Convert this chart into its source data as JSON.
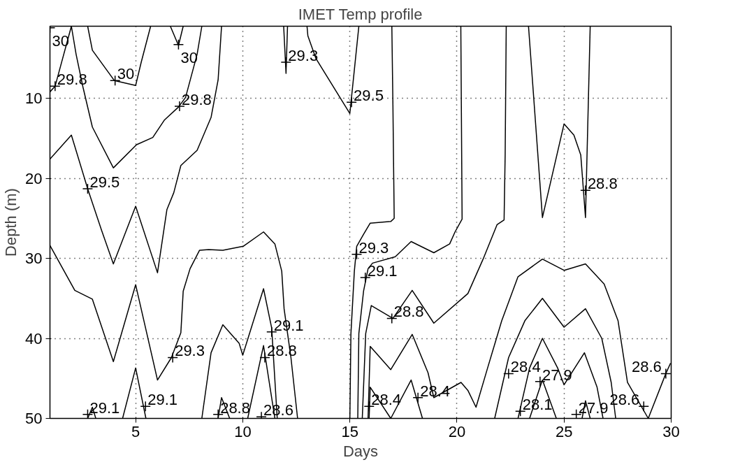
{
  "chart_data": {
    "type": "line",
    "title": "IMET Temp profile",
    "xlabel": "Days",
    "ylabel": "Depth (m)",
    "xlim": [
      1,
      30
    ],
    "ylim": [
      50,
      1
    ],
    "xticks": [
      5,
      10,
      15,
      20,
      25,
      30
    ],
    "yticks": [
      10,
      20,
      30,
      40,
      50
    ],
    "grid": true,
    "line_style": "solid",
    "series": [
      {
        "color": "#000000",
        "x": [
          1,
          1.24,
          2.0
        ],
        "values": [
          9.2,
          8.5,
          1
        ]
      },
      {
        "color": "#000000",
        "x": [
          2.0,
          2.22,
          2.54,
          2.98,
          3.96,
          5.04,
          5.8,
          6.35,
          7.0,
          7.33,
          7.87,
          8.09
        ],
        "values": [
          1,
          4.5,
          8.6,
          13.6,
          18.7,
          15.8,
          14.9,
          12.7,
          11.1,
          9.9,
          4.5,
          1
        ]
      },
      {
        "color": "#000000",
        "x": [
          2.76,
          2.98,
          4.01,
          5.0,
          5.26,
          5.7
        ],
        "values": [
          1,
          4.0,
          7.8,
          8.4,
          5.5,
          1
        ]
      },
      {
        "color": "#000000",
        "x": [
          6.62,
          7.0,
          7.22
        ],
        "values": [
          1,
          3.4,
          1
        ]
      },
      {
        "color": "#000000",
        "x": [
          1,
          2.0,
          2.76,
          3.41,
          3.96,
          5.0,
          6.02,
          6.46,
          6.78,
          7.11,
          7.87,
          8.52,
          8.85,
          9.01
        ],
        "values": [
          17.6,
          14.6,
          21.3,
          26.5,
          30.7,
          23.5,
          31.8,
          23.9,
          21.8,
          18.4,
          16.5,
          12.4,
          7.7,
          1
        ]
      },
      {
        "color": "#000000",
        "x": [
          1,
          2.16,
          2.98,
          3.96,
          5.0,
          6.02,
          6.67,
          7.11,
          7.22,
          7.54,
          7.98,
          8.41,
          9.07,
          10.02,
          10.97,
          11.5,
          11.82,
          11.93,
          12.25,
          12.56
        ],
        "values": [
          28.4,
          34.0,
          35.1,
          42.9,
          33.3,
          45.2,
          42.4,
          39.3,
          34.1,
          31.3,
          29.0,
          28.9,
          29.0,
          28.5,
          26.7,
          28.2,
          31.6,
          36.3,
          42.4,
          50
        ]
      },
      {
        "color": "#000000",
        "x": [
          2.76,
          2.98,
          3.14
        ],
        "values": [
          50,
          48.6,
          50
        ]
      },
      {
        "color": "#000000",
        "x": [
          4.39,
          5.0,
          5.48
        ],
        "values": [
          50,
          43.7,
          50
        ]
      },
      {
        "color": "#000000",
        "x": [
          8.09,
          8.52,
          9.07,
          9.83,
          10.0,
          10.97,
          11.35,
          11.61
        ],
        "values": [
          50,
          41.8,
          38.3,
          40.6,
          42.1,
          33.8,
          38.7,
          50
        ]
      },
      {
        "color": "#000000",
        "x": [
          8.85,
          9.01,
          9.39
        ],
        "values": [
          50,
          47.4,
          50
        ]
      },
      {
        "color": "#000000",
        "x": [
          10.23,
          10.97,
          11.5
        ],
        "values": [
          50,
          40.9,
          50
        ]
      },
      {
        "color": "#000000",
        "x": [
          11.91,
          12.02,
          12.09
        ],
        "values": [
          1,
          6.9,
          1
        ]
      },
      {
        "color": "#000000",
        "x": [
          13.0,
          13.04,
          13.41,
          15.0,
          15.42
        ],
        "values": [
          1,
          2.2,
          5.0,
          11.9,
          1
        ]
      },
      {
        "color": "#000000",
        "x": [
          16.96,
          17.01,
          17.07,
          16.91,
          15.95,
          15.64,
          15.32,
          15.21,
          15.05,
          15.0
        ],
        "values": [
          1,
          10.8,
          25.0,
          25.4,
          25.6,
          27.0,
          28.5,
          31.6,
          39.4,
          50
        ]
      },
      {
        "color": "#000000",
        "x": [
          20.18,
          20.24,
          19.91,
          19.66,
          18.92,
          17.86,
          17.12,
          16.06,
          15.85,
          15.64,
          15.42,
          15.37
        ],
        "values": [
          1,
          25.1,
          26.7,
          28.2,
          29.3,
          27.9,
          29.8,
          30.6,
          31.3,
          34.1,
          39.4,
          50
        ]
      },
      {
        "color": "#000000",
        "x": [
          15.58,
          15.74,
          16.0,
          17.01,
          17.91,
          18.92,
          20.51,
          21.22,
          21.87,
          22.2,
          22.25,
          22.3
        ],
        "values": [
          50,
          39.4,
          35.9,
          37.5,
          34.0,
          38.1,
          34.4,
          30.1,
          25.8,
          25.2,
          17.1,
          1
        ]
      },
      {
        "color": "#000000",
        "x": [
          15.85,
          15.95,
          16.91,
          17.91,
          18.65,
          18.92,
          20.19,
          20.51,
          20.89,
          21.43,
          22.09,
          22.85,
          23.99,
          25.0,
          26.0,
          26.87,
          27.52,
          27.96,
          28.93,
          29.75,
          29.97
        ],
        "values": [
          50,
          41.0,
          43.9,
          39.5,
          44.3,
          47.4,
          45.5,
          46.5,
          48.6,
          43.7,
          37.8,
          32.3,
          30.1,
          31.5,
          30.7,
          33.2,
          37.8,
          45.5,
          50,
          44.4,
          43.1
        ]
      },
      {
        "color": "#000000",
        "x": [
          15.9,
          15.95,
          16.91,
          17.86,
          18.39
        ],
        "values": [
          50,
          46.1,
          50,
          45.2,
          50
        ]
      },
      {
        "color": "#000000",
        "x": [
          21.76,
          22.41,
          23.17,
          23.99,
          25.0,
          26.0,
          26.76,
          27.2,
          27.41
        ],
        "values": [
          50,
          42.4,
          37.8,
          35.0,
          38.6,
          36.3,
          40.0,
          45.5,
          50
        ]
      },
      {
        "color": "#000000",
        "x": [
          22.85,
          23.39,
          23.99,
          24.7,
          25.0,
          25.95,
          26.54,
          26.82
        ],
        "values": [
          50,
          43.7,
          40.0,
          43.7,
          45.8,
          41.8,
          46.1,
          50
        ]
      },
      {
        "color": "#000000",
        "x": [
          23.39,
          23.99,
          24.64
        ],
        "values": [
          50,
          45.2,
          50
        ]
      },
      {
        "color": "#000000",
        "x": [
          25.84,
          26.0,
          26.22
        ],
        "values": [
          50,
          47.8,
          50
        ]
      },
      {
        "color": "#000000",
        "x": [
          23.34,
          23.99,
          25.0,
          25.46,
          25.78,
          26.0,
          26.22
        ],
        "values": [
          1,
          24.9,
          13.2,
          14.6,
          17.1,
          24.9,
          1
        ]
      },
      {
        "type": "scatter",
        "marker": "cross",
        "color": "#000000",
        "x": [
          1,
          1.24,
          4.04,
          7.0,
          7.05,
          2.76,
          12.02,
          15.08,
          26.0,
          15.32,
          15.72,
          16.96,
          11.35,
          11.03,
          6.73,
          2.76,
          5.46,
          8.85,
          10.87,
          15.9,
          18.18,
          22.41,
          23.88,
          22.96,
          25.57,
          28.72,
          29.75
        ],
        "values": [
          1.2,
          8.5,
          7.8,
          3.3,
          11.0,
          21.3,
          5.5,
          10.5,
          21.5,
          29.5,
          32.4,
          37.5,
          39.2,
          42.4,
          42.4,
          49.5,
          48.5,
          49.5,
          49.8,
          48.5,
          47.4,
          44.4,
          45.4,
          49.1,
          49.5,
          48.5,
          44.4
        ]
      }
    ],
    "annotations": [
      {
        "text": "30",
        "x": 1,
        "y": 1.2
      },
      {
        "text": "29.8",
        "x": 1.24,
        "y": 8.5
      },
      {
        "text": "30",
        "x": 4.04,
        "y": 7.8
      },
      {
        "text": "30",
        "x": 7.0,
        "y": 3.3
      },
      {
        "text": "29.8",
        "x": 7.05,
        "y": 11.0
      },
      {
        "text": "29.5",
        "x": 2.76,
        "y": 21.3
      },
      {
        "text": "29.3",
        "x": 12.02,
        "y": 5.5
      },
      {
        "text": "29.5",
        "x": 15.08,
        "y": 10.5
      },
      {
        "text": "28.8",
        "x": 26.0,
        "y": 21.5
      },
      {
        "text": "29.3",
        "x": 15.32,
        "y": 29.5
      },
      {
        "text": "29.1",
        "x": 15.72,
        "y": 32.4
      },
      {
        "text": "28.8",
        "x": 16.96,
        "y": 37.5
      },
      {
        "text": "29.1",
        "x": 11.35,
        "y": 39.2
      },
      {
        "text": "28.8",
        "x": 11.03,
        "y": 42.4
      },
      {
        "text": "29.3",
        "x": 6.73,
        "y": 42.4
      },
      {
        "text": "29.1",
        "x": 2.76,
        "y": 49.5
      },
      {
        "text": "29.1",
        "x": 5.46,
        "y": 48.5
      },
      {
        "text": "28.8",
        "x": 8.85,
        "y": 49.5
      },
      {
        "text": "28.6",
        "x": 10.87,
        "y": 49.8
      },
      {
        "text": "28.4",
        "x": 15.9,
        "y": 48.5
      },
      {
        "text": "28.4",
        "x": 18.18,
        "y": 47.4
      },
      {
        "text": "28.4",
        "x": 22.41,
        "y": 44.4
      },
      {
        "text": "27.9",
        "x": 23.88,
        "y": 45.4
      },
      {
        "text": "28.1",
        "x": 22.96,
        "y": 49.1
      },
      {
        "text": "27.9",
        "x": 25.57,
        "y": 49.5
      },
      {
        "text": "28.6",
        "x": 28.72,
        "y": 48.5
      },
      {
        "text": "28.6",
        "x": 29.75,
        "y": 44.4
      }
    ]
  }
}
